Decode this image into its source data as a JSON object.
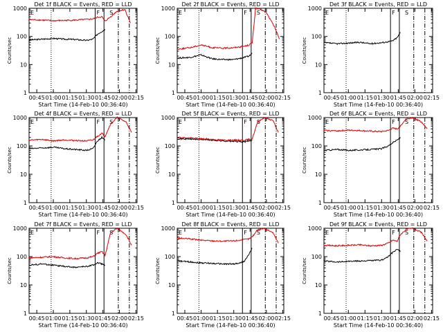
{
  "figure": {
    "panel_title_suffix": "BLACK = Events, RED = LLD",
    "xlabel": "Start Time (14-Feb-10 00:36:40)",
    "ylabel": "Counts/sec",
    "xtick_labels": [
      "00:45",
      "01:00",
      "01:15",
      "01:30",
      "01:45",
      "02:00",
      "02:15"
    ],
    "ytick_labels": [
      "1",
      "10",
      "100",
      "1000"
    ],
    "marker_labels": [
      "F",
      "S"
    ],
    "colors": {
      "events": "#000000",
      "lld": "#dd0000",
      "axes": "#000000"
    }
  },
  "chart_data": [
    {
      "type": "line",
      "title": "Det 1f",
      "xlim_min": [
        38,
        136
      ],
      "ylim": [
        1,
        1000
      ],
      "yscale": "log",
      "xticks_min": [
        45,
        60,
        75,
        90,
        105,
        120,
        135
      ],
      "markers_min": {
        "dotted": 58,
        "solid": [
          98,
          106
        ],
        "dashdot": [
          119,
          129
        ]
      },
      "series": [
        {
          "name": "Events",
          "color": "#000000",
          "x": [
            38,
            50,
            60,
            70,
            80,
            90,
            96,
            100,
            104,
            107
          ],
          "y": [
            75,
            80,
            85,
            80,
            78,
            72,
            80,
            120,
            150,
            180
          ]
        },
        {
          "name": "LLD",
          "color": "#dd0000",
          "x": [
            38,
            50,
            60,
            70,
            80,
            90,
            96,
            100,
            104,
            107,
            112,
            118,
            125,
            130
          ],
          "y": [
            400,
            380,
            360,
            370,
            380,
            400,
            420,
            480,
            500,
            350,
            500,
            800,
            900,
            300
          ]
        }
      ]
    },
    {
      "type": "line",
      "title": "Det 2f",
      "xlim_min": [
        38,
        136
      ],
      "ylim": [
        1,
        1000
      ],
      "yscale": "log",
      "xticks_min": [
        45,
        60,
        75,
        90,
        105,
        120,
        135
      ],
      "markers_min": {
        "dotted": 58,
        "solid": [
          98,
          106
        ],
        "dashdot": [
          119,
          129
        ]
      },
      "series": [
        {
          "name": "Events",
          "color": "#000000",
          "x": [
            38,
            50,
            60,
            70,
            80,
            90,
            100,
            104,
            107
          ],
          "y": [
            17,
            18,
            22,
            16,
            15,
            15,
            18,
            20,
            25
          ]
        },
        {
          "name": "LLD",
          "color": "#dd0000",
          "x": [
            38,
            50,
            60,
            70,
            80,
            90,
            100,
            104,
            107,
            110,
            115,
            120,
            128,
            132
          ],
          "y": [
            35,
            40,
            50,
            40,
            38,
            40,
            45,
            50,
            60,
            1000,
            900,
            700,
            200,
            80
          ]
        }
      ]
    },
    {
      "type": "line",
      "title": "Det 3f",
      "xlim_min": [
        38,
        136
      ],
      "ylim": [
        1,
        1000
      ],
      "yscale": "log",
      "xticks_min": [
        45,
        60,
        75,
        90,
        105,
        120,
        135
      ],
      "markers_min": {
        "dotted": 58,
        "solid": [
          98,
          106
        ],
        "dashdot": [
          119,
          129
        ]
      },
      "series": [
        {
          "name": "Events",
          "color": "#000000",
          "x": [
            38,
            50,
            60,
            70,
            80,
            90,
            96,
            100,
            104,
            107
          ],
          "y": [
            60,
            55,
            58,
            62,
            55,
            60,
            65,
            70,
            90,
            140
          ]
        }
      ]
    },
    {
      "type": "line",
      "title": "Det 4f",
      "xlim_min": [
        38,
        136
      ],
      "ylim": [
        1,
        1000
      ],
      "yscale": "log",
      "xticks_min": [
        45,
        60,
        75,
        90,
        105,
        120,
        135
      ],
      "markers_min": {
        "dotted": 58,
        "solid": [
          98,
          106
        ],
        "dashdot": [
          119,
          129
        ]
      },
      "series": [
        {
          "name": "Events",
          "color": "#000000",
          "x": [
            38,
            50,
            60,
            70,
            80,
            90,
            96,
            100,
            104,
            107
          ],
          "y": [
            80,
            85,
            90,
            80,
            75,
            70,
            80,
            150,
            200,
            160
          ]
        },
        {
          "name": "LLD",
          "color": "#dd0000",
          "x": [
            38,
            50,
            60,
            70,
            80,
            90,
            96,
            100,
            104,
            107,
            112,
            118,
            126,
            131
          ],
          "y": [
            160,
            170,
            150,
            165,
            155,
            150,
            160,
            220,
            280,
            220,
            600,
            1000,
            700,
            300
          ]
        }
      ]
    },
    {
      "type": "line",
      "title": "Det 5f",
      "xlim_min": [
        38,
        136
      ],
      "ylim": [
        1,
        1000
      ],
      "yscale": "log",
      "xticks_min": [
        45,
        60,
        75,
        90,
        105,
        120,
        135
      ],
      "markers_min": {
        "dotted": 58,
        "solid": [
          98,
          106
        ],
        "dashdot": [
          119,
          129
        ]
      },
      "series": [
        {
          "name": "Events",
          "color": "#000000",
          "x": [
            38,
            50,
            60,
            70,
            80,
            90,
            100,
            104,
            107
          ],
          "y": [
            180,
            175,
            170,
            160,
            150,
            145,
            140,
            150,
            160
          ]
        },
        {
          "name": "LLD",
          "color": "#dd0000",
          "x": [
            38,
            50,
            60,
            70,
            80,
            90,
            100,
            104,
            107,
            112,
            118,
            126,
            131
          ],
          "y": [
            200,
            190,
            180,
            170,
            160,
            160,
            160,
            170,
            180,
            700,
            1000,
            800,
            300
          ]
        }
      ]
    },
    {
      "type": "line",
      "title": "Det 6f",
      "xlim_min": [
        38,
        136
      ],
      "ylim": [
        1,
        1000
      ],
      "yscale": "log",
      "xticks_min": [
        45,
        60,
        75,
        90,
        105,
        120,
        135
      ],
      "markers_min": {
        "dotted": 58,
        "solid": [
          98,
          106
        ],
        "dashdot": [
          119,
          129
        ]
      },
      "series": [
        {
          "name": "Events",
          "color": "#000000",
          "x": [
            38,
            50,
            60,
            70,
            80,
            90,
            96,
            100,
            104,
            107
          ],
          "y": [
            70,
            75,
            70,
            72,
            75,
            80,
            100,
            130,
            160,
            200
          ]
        },
        {
          "name": "LLD",
          "color": "#dd0000",
          "x": [
            38,
            50,
            60,
            70,
            80,
            90,
            96,
            100,
            104,
            107,
            112,
            118,
            126,
            131
          ],
          "y": [
            350,
            340,
            360,
            350,
            330,
            320,
            350,
            420,
            400,
            500,
            900,
            1000,
            700,
            400
          ]
        }
      ]
    },
    {
      "type": "line",
      "title": "Det 7f",
      "xlim_min": [
        38,
        136
      ],
      "ylim": [
        1,
        1000
      ],
      "yscale": "log",
      "xticks_min": [
        45,
        60,
        75,
        90,
        105,
        120,
        135
      ],
      "markers_min": {
        "dotted": 58,
        "solid": [
          98,
          106
        ],
        "dashdot": [
          119,
          129
        ]
      },
      "series": [
        {
          "name": "Events",
          "color": "#000000",
          "x": [
            38,
            50,
            60,
            70,
            80,
            90,
            96,
            100,
            104,
            107
          ],
          "y": [
            50,
            55,
            50,
            45,
            42,
            45,
            50,
            60,
            55,
            50
          ]
        },
        {
          "name": "LLD",
          "color": "#dd0000",
          "x": [
            38,
            50,
            60,
            70,
            80,
            90,
            96,
            100,
            104,
            107,
            112,
            118,
            126,
            131
          ],
          "y": [
            90,
            95,
            100,
            90,
            85,
            90,
            100,
            130,
            150,
            110,
            700,
            1000,
            600,
            250
          ]
        }
      ]
    },
    {
      "type": "line",
      "title": "Det 8f",
      "xlim_min": [
        38,
        136
      ],
      "ylim": [
        1,
        1000
      ],
      "yscale": "log",
      "xticks_min": [
        45,
        60,
        75,
        90,
        105,
        120,
        135
      ],
      "markers_min": {
        "dotted": 58,
        "solid": [
          98,
          106
        ],
        "dashdot": [
          119,
          129
        ]
      },
      "series": [
        {
          "name": "Events",
          "color": "#000000",
          "x": [
            38,
            50,
            60,
            70,
            80,
            90,
            96,
            100,
            104,
            107
          ],
          "y": [
            70,
            65,
            60,
            58,
            55,
            55,
            60,
            70,
            120,
            200
          ]
        },
        {
          "name": "LLD",
          "color": "#dd0000",
          "x": [
            38,
            50,
            60,
            70,
            80,
            90,
            96,
            100,
            104,
            107,
            112,
            118,
            126,
            131
          ],
          "y": [
            450,
            420,
            380,
            360,
            350,
            360,
            380,
            400,
            420,
            500,
            900,
            1000,
            700,
            300
          ]
        }
      ]
    },
    {
      "type": "line",
      "title": "Det 9f",
      "xlim_min": [
        38,
        136
      ],
      "ylim": [
        1,
        1000
      ],
      "yscale": "log",
      "xticks_min": [
        45,
        60,
        75,
        90,
        105,
        120,
        135
      ],
      "markers_min": {
        "dotted": 58,
        "solid": [
          98,
          106
        ],
        "dashdot": [
          119,
          129
        ]
      },
      "series": [
        {
          "name": "Events",
          "color": "#000000",
          "x": [
            38,
            50,
            60,
            70,
            80,
            90,
            96,
            100,
            104,
            107
          ],
          "y": [
            70,
            65,
            68,
            70,
            72,
            75,
            100,
            140,
            180,
            150
          ]
        },
        {
          "name": "LLD",
          "color": "#dd0000",
          "x": [
            38,
            50,
            60,
            70,
            80,
            90,
            96,
            100,
            104,
            107,
            112,
            118,
            126,
            131
          ],
          "y": [
            250,
            240,
            250,
            260,
            240,
            250,
            300,
            380,
            350,
            600,
            900,
            1000,
            700,
            350
          ]
        }
      ]
    }
  ]
}
